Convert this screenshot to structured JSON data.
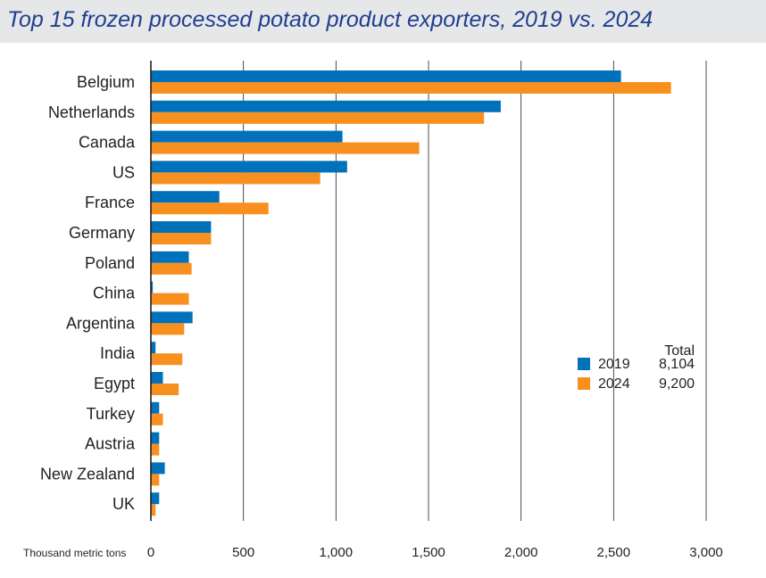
{
  "chart_data": {
    "type": "bar",
    "orientation": "horizontal",
    "title": "Top 15 frozen processed potato product exporters, 2019 vs. 2024",
    "categories": [
      "Belgium",
      "Netherlands",
      "Canada",
      "US",
      "France",
      "Germany",
      "Poland",
      "China",
      "Argentina",
      "India",
      "Egypt",
      "Turkey",
      "Austria",
      "New Zealand",
      "UK"
    ],
    "series": [
      {
        "name": "2019",
        "color": "#0072bc",
        "values": [
          2540,
          1890,
          1035,
          1060,
          370,
          325,
          205,
          10,
          225,
          25,
          65,
          45,
          45,
          75,
          45
        ]
      },
      {
        "name": "2024",
        "color": "#f7901e",
        "values": [
          2810,
          1800,
          1450,
          915,
          635,
          325,
          220,
          205,
          180,
          170,
          150,
          65,
          45,
          45,
          25
        ]
      }
    ],
    "xlabel": "Thousand metric tons",
    "xlim": [
      0,
      3000
    ],
    "xticks": [
      0,
      500,
      1000,
      1500,
      2000,
      2500,
      3000
    ],
    "xtick_labels": [
      "0",
      "500",
      "1,000",
      "1,500",
      "2,000",
      "2,500",
      "3,000"
    ],
    "grid": "vertical",
    "legend": {
      "placement": "lower-right",
      "header": "Total",
      "entries": [
        {
          "label": "2019",
          "total": "8,104"
        },
        {
          "label": "2024",
          "total": "9,200"
        }
      ]
    }
  }
}
